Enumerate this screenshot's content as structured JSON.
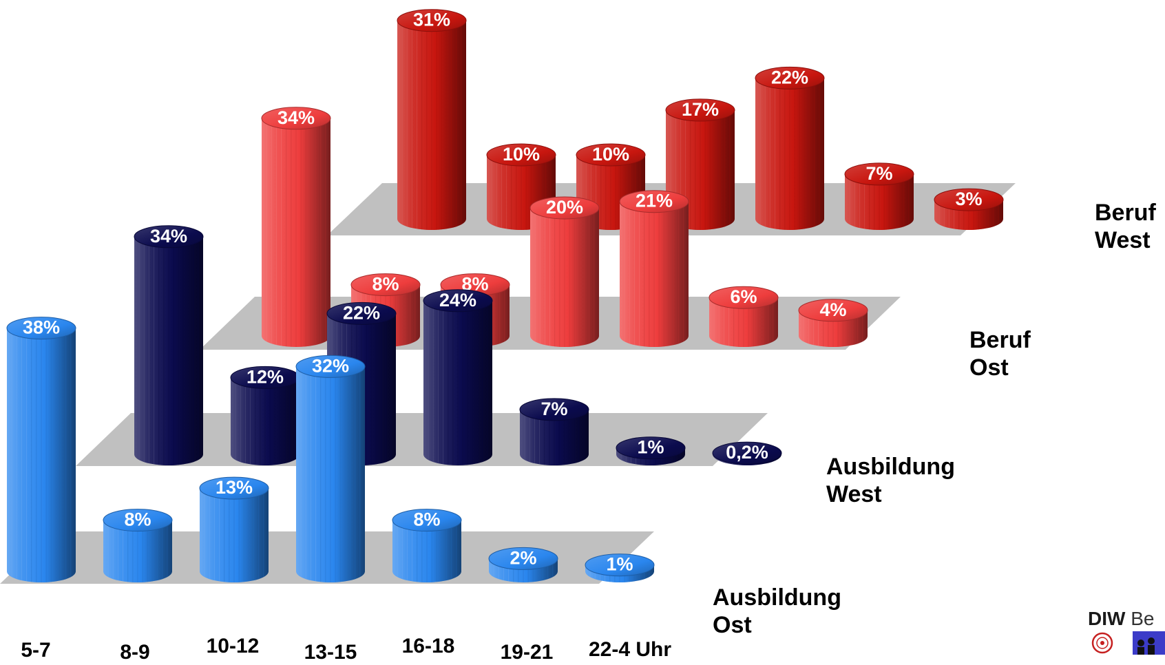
{
  "chart_data": {
    "type": "bar",
    "categories": [
      "5-7",
      "8-9",
      "10-12",
      "13-15",
      "16-18",
      "19-21",
      "22-4 Uhr"
    ],
    "series": [
      {
        "name_lines": [
          "Beruf",
          "West"
        ],
        "values": [
          31,
          10,
          10,
          17,
          22,
          7,
          3
        ],
        "labels": [
          "31%",
          "10%",
          "10%",
          "17%",
          "22%",
          "7%",
          "3%"
        ]
      },
      {
        "name_lines": [
          "Beruf",
          "Ost"
        ],
        "values": [
          34,
          8,
          8,
          20,
          21,
          6,
          4
        ],
        "labels": [
          "34%",
          "8%",
          "8%",
          "20%",
          "21%",
          "6%",
          "4%"
        ]
      },
      {
        "name_lines": [
          "Ausbildung",
          "West"
        ],
        "values": [
          34,
          12,
          22,
          24,
          7,
          1,
          0.2
        ],
        "labels": [
          "34%",
          "12%",
          "22%",
          "24%",
          "7%",
          "1%",
          "0,2%"
        ]
      },
      {
        "name_lines": [
          "Ausbildung",
          "Ost"
        ],
        "values": [
          38,
          8,
          13,
          32,
          8,
          2,
          1
        ],
        "labels": [
          "38%",
          "8%",
          "13%",
          "32%",
          "8%",
          "2%",
          "1%"
        ]
      }
    ],
    "colors": {
      "beruf_west": "#c8160f",
      "beruf_ost": "#ee3d3d",
      "ausbildung_west": "#0b0b4e",
      "ausbildung_ost": "#2a86ee",
      "floor": "#c0c0c0"
    },
    "grid": false,
    "legend": "none"
  },
  "logo": {
    "text_bold": "DIW",
    "text_rest": "Be"
  }
}
